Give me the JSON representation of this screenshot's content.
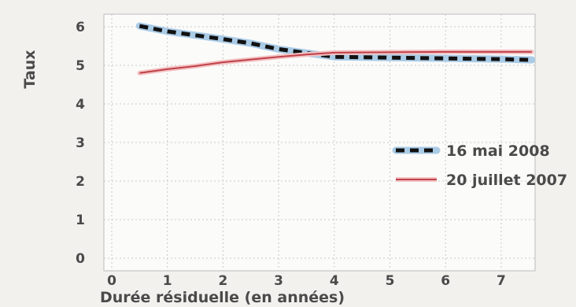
{
  "chart_data": {
    "type": "line",
    "xlabel": "Durée résiduelle (en années)",
    "ylabel": "Taux",
    "xlim": [
      0,
      7.6
    ],
    "ylim": [
      0,
      6
    ],
    "x_ticks": [
      "0",
      "1",
      "2",
      "3",
      "4",
      "5",
      "6",
      "7"
    ],
    "y_ticks": [
      "0",
      "1",
      "2",
      "3",
      "4",
      "5",
      "6"
    ],
    "grid": true,
    "legend_position": "right",
    "series": [
      {
        "name": "16 mai 2008",
        "style": "dashed",
        "color": "#111111",
        "halo_color": "#a9cbe6",
        "points": [
          {
            "x": 0.5,
            "y": 6.02
          },
          {
            "x": 1.0,
            "y": 5.88
          },
          {
            "x": 1.5,
            "y": 5.78
          },
          {
            "x": 2.0,
            "y": 5.68
          },
          {
            "x": 2.5,
            "y": 5.57
          },
          {
            "x": 3.0,
            "y": 5.42
          },
          {
            "x": 3.5,
            "y": 5.32
          },
          {
            "x": 4.0,
            "y": 5.22
          },
          {
            "x": 5.0,
            "y": 5.2
          },
          {
            "x": 6.0,
            "y": 5.18
          },
          {
            "x": 7.0,
            "y": 5.16
          },
          {
            "x": 7.55,
            "y": 5.14
          }
        ]
      },
      {
        "name": "20 juillet 2007",
        "style": "solid",
        "color": "#c0404a",
        "halo_color": "#f3c3c3",
        "points": [
          {
            "x": 0.5,
            "y": 4.8
          },
          {
            "x": 1.0,
            "y": 4.9
          },
          {
            "x": 1.5,
            "y": 4.98
          },
          {
            "x": 2.0,
            "y": 5.08
          },
          {
            "x": 2.5,
            "y": 5.15
          },
          {
            "x": 3.0,
            "y": 5.22
          },
          {
            "x": 3.5,
            "y": 5.28
          },
          {
            "x": 4.0,
            "y": 5.33
          },
          {
            "x": 5.0,
            "y": 5.34
          },
          {
            "x": 6.0,
            "y": 5.35
          },
          {
            "x": 7.0,
            "y": 5.35
          },
          {
            "x": 7.55,
            "y": 5.35
          }
        ]
      }
    ]
  }
}
